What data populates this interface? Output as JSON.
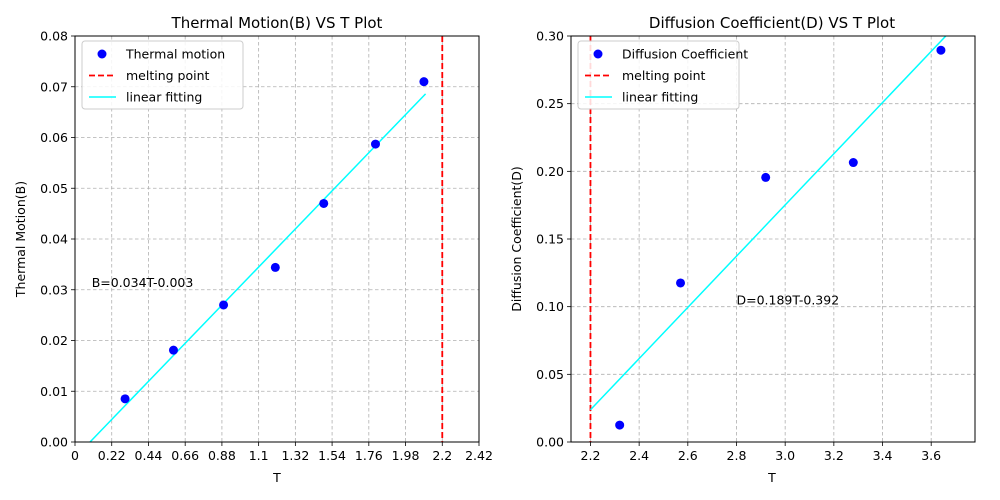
{
  "chart_data": [
    {
      "type": "scatter",
      "title": "Thermal Motion(B) VS T Plot",
      "xlabel": "T",
      "ylabel": "Thermal Motion(B)",
      "xlim": [
        0,
        2.42
      ],
      "ylim": [
        0,
        0.08
      ],
      "xticks": [
        "0",
        "0.22",
        "0.44",
        "0.66",
        "0.88",
        "1.1",
        "1.32",
        "1.54",
        "1.76",
        "1.98",
        "2.2",
        "2.42"
      ],
      "yticks": [
        "0.00",
        "0.01",
        "0.02",
        "0.03",
        "0.04",
        "0.05",
        "0.06",
        "0.07",
        "0.08"
      ],
      "grid": true,
      "legend_position": "upper-left",
      "series": [
        {
          "name": "Thermal motion",
          "kind": "points",
          "color": "#0000ff",
          "x": [
            0.3,
            0.59,
            0.89,
            1.2,
            1.49,
            1.8,
            2.09
          ],
          "y": [
            0.0085,
            0.0181,
            0.027,
            0.0344,
            0.047,
            0.0587,
            0.071
          ]
        },
        {
          "name": "melting point",
          "kind": "vline",
          "color": "#ff0000",
          "x": 2.2
        },
        {
          "name": "linear fitting",
          "kind": "line",
          "color": "#00ffff",
          "x": [
            0.09,
            2.1
          ],
          "y": [
            0.0,
            0.0686
          ]
        }
      ],
      "annotations": [
        {
          "text": "B=0.034T-0.003",
          "x": 0.1,
          "y": 0.0305
        }
      ]
    },
    {
      "type": "scatter",
      "title": "Diffusion Coefficient(D) VS T Plot",
      "xlabel": "T",
      "ylabel": "Diffusion Coefficient(D)",
      "xlim": [
        2.12,
        3.78
      ],
      "ylim": [
        0,
        0.3
      ],
      "xticks": [
        "2.2",
        "2.4",
        "2.6",
        "2.8",
        "3.0",
        "3.2",
        "3.4",
        "3.6"
      ],
      "yticks": [
        "0.00",
        "0.05",
        "0.10",
        "0.15",
        "0.20",
        "0.25",
        "0.30"
      ],
      "grid": true,
      "legend_position": "upper-left",
      "series": [
        {
          "name": "Diffusion Coefficient",
          "kind": "points",
          "color": "#0000ff",
          "x": [
            2.32,
            2.57,
            2.92,
            3.28,
            3.64
          ],
          "y": [
            0.0125,
            0.1175,
            0.1955,
            0.2065,
            0.2895
          ]
        },
        {
          "name": "melting point",
          "kind": "vline",
          "color": "#ff0000",
          "x": 2.2
        },
        {
          "name": "linear fitting",
          "kind": "line",
          "color": "#00ffff",
          "x": [
            2.2,
            3.66
          ],
          "y": [
            0.0238,
            0.3
          ]
        }
      ],
      "annotations": [
        {
          "text": "D=0.189T-0.392",
          "x": 2.8,
          "y": 0.1015
        }
      ]
    }
  ]
}
